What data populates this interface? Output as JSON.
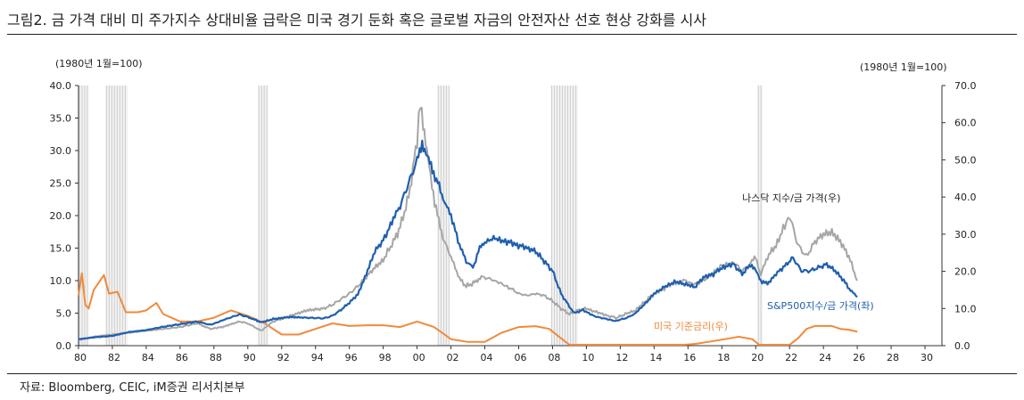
{
  "title": "그림2.  금 가격 대비 미 주가지수 상대비율 급락은 미국 경기 둔화 혹은 글로벌 자금의 안전자산 선호 현상 강화를 시사",
  "source": "자료: Bloomberg, CEIC, iM증권 리서치본부",
  "chart_data": {
    "type": "line",
    "left_axis_unit": "(1980년 1월=100)",
    "right_axis_unit": "(1980년 1월=100)",
    "ylim_left": [
      0,
      40
    ],
    "ylim_right": [
      0,
      70
    ],
    "xlim": [
      1980,
      2031
    ],
    "y_ticks_left": [
      "0.0",
      "5.0",
      "10.0",
      "15.0",
      "20.0",
      "25.0",
      "30.0",
      "35.0",
      "40.0"
    ],
    "y_ticks_right": [
      "0.0",
      "10.0",
      "20.0",
      "30.0",
      "40.0",
      "50.0",
      "60.0",
      "70.0"
    ],
    "x_tick_labels": [
      "80",
      "82",
      "84",
      "86",
      "88",
      "90",
      "92",
      "94",
      "96",
      "98",
      "00",
      "02",
      "04",
      "06",
      "08",
      "10",
      "12",
      "14",
      "16",
      "18",
      "20",
      "22",
      "24",
      "26",
      "28",
      "30"
    ],
    "recessions": [
      [
        1980.0,
        1980.6
      ],
      [
        1981.6,
        1982.9
      ],
      [
        1990.6,
        1991.2
      ],
      [
        2001.2,
        2001.9
      ],
      [
        2007.9,
        2009.5
      ],
      [
        2020.1,
        2020.4
      ]
    ],
    "series": [
      {
        "name": "S&P500지수/금 가격(좌)",
        "axis": "left",
        "color": "#1f5fae",
        "points": [
          [
            1980.0,
            1.0
          ],
          [
            1981.0,
            1.3
          ],
          [
            1982.0,
            1.5
          ],
          [
            1983.0,
            2.1
          ],
          [
            1984.0,
            2.4
          ],
          [
            1985.0,
            2.9
          ],
          [
            1986.0,
            3.3
          ],
          [
            1987.0,
            3.7
          ],
          [
            1987.8,
            3.2
          ],
          [
            1988.5,
            3.9
          ],
          [
            1989.5,
            4.8
          ],
          [
            1990.0,
            4.4
          ],
          [
            1990.8,
            3.6
          ],
          [
            1991.5,
            4.1
          ],
          [
            1992.5,
            4.4
          ],
          [
            1993.5,
            4.3
          ],
          [
            1994.5,
            4.2
          ],
          [
            1995.0,
            4.6
          ],
          [
            1995.5,
            5.5
          ],
          [
            1996.0,
            6.6
          ],
          [
            1996.5,
            7.9
          ],
          [
            1997.0,
            11.0
          ],
          [
            1997.5,
            14.5
          ],
          [
            1998.0,
            16.2
          ],
          [
            1998.6,
            19.5
          ],
          [
            1999.0,
            21.5
          ],
          [
            1999.5,
            25.0
          ],
          [
            2000.0,
            28.5
          ],
          [
            2000.3,
            31.3
          ],
          [
            2000.6,
            29.0
          ],
          [
            2000.9,
            27.0
          ],
          [
            2001.3,
            24.5
          ],
          [
            2001.7,
            21.5
          ],
          [
            2002.0,
            20.0
          ],
          [
            2002.5,
            15.5
          ],
          [
            2002.9,
            13.0
          ],
          [
            2003.3,
            12.0
          ],
          [
            2003.7,
            15.0
          ],
          [
            2004.0,
            16.0
          ],
          [
            2004.6,
            16.5
          ],
          [
            2005.3,
            16.0
          ],
          [
            2005.9,
            15.5
          ],
          [
            2006.5,
            15.0
          ],
          [
            2007.0,
            14.5
          ],
          [
            2007.5,
            13.0
          ],
          [
            2008.0,
            11.5
          ],
          [
            2008.5,
            8.0
          ],
          [
            2009.0,
            6.0
          ],
          [
            2009.3,
            5.0
          ],
          [
            2009.8,
            5.5
          ],
          [
            2010.5,
            4.5
          ],
          [
            2011.0,
            4.2
          ],
          [
            2011.7,
            3.8
          ],
          [
            2012.3,
            4.2
          ],
          [
            2012.8,
            4.8
          ],
          [
            2013.5,
            6.5
          ],
          [
            2014.0,
            8.0
          ],
          [
            2014.6,
            9.0
          ],
          [
            2015.2,
            9.8
          ],
          [
            2015.8,
            9.5
          ],
          [
            2016.4,
            9.0
          ],
          [
            2016.9,
            10.5
          ],
          [
            2017.5,
            11.0
          ],
          [
            2018.0,
            12.0
          ],
          [
            2018.7,
            12.5
          ],
          [
            2019.2,
            11.0
          ],
          [
            2019.7,
            12.5
          ],
          [
            2020.0,
            11.5
          ],
          [
            2020.3,
            10.0
          ],
          [
            2020.7,
            9.5
          ],
          [
            2021.2,
            11.0
          ],
          [
            2021.8,
            12.5
          ],
          [
            2022.2,
            13.5
          ],
          [
            2022.7,
            11.5
          ],
          [
            2023.2,
            11.5
          ],
          [
            2023.7,
            12.0
          ],
          [
            2024.2,
            12.5
          ],
          [
            2024.7,
            11.5
          ],
          [
            2025.2,
            10.0
          ],
          [
            2025.6,
            8.5
          ],
          [
            2026.0,
            7.5
          ]
        ]
      },
      {
        "name": "나스닥 지수/금 가격(우)",
        "axis": "right",
        "color": "#a6a6a6",
        "points": [
          [
            1980.0,
            1.5
          ],
          [
            1981.0,
            2.5
          ],
          [
            1982.0,
            3.0
          ],
          [
            1983.0,
            3.5
          ],
          [
            1984.0,
            4.0
          ],
          [
            1985.0,
            4.5
          ],
          [
            1986.0,
            5.0
          ],
          [
            1987.0,
            6.0
          ],
          [
            1987.8,
            4.5
          ],
          [
            1988.5,
            5.0
          ],
          [
            1989.5,
            6.5
          ],
          [
            1990.0,
            6.0
          ],
          [
            1990.8,
            4.0
          ],
          [
            1991.5,
            6.5
          ],
          [
            1992.5,
            8.0
          ],
          [
            1993.5,
            9.5
          ],
          [
            1994.5,
            10.0
          ],
          [
            1995.0,
            11.0
          ],
          [
            1995.5,
            12.5
          ],
          [
            1996.0,
            14.0
          ],
          [
            1996.5,
            16.0
          ],
          [
            1997.0,
            18.5
          ],
          [
            1997.5,
            21.0
          ],
          [
            1998.0,
            23.0
          ],
          [
            1998.6,
            28.0
          ],
          [
            1999.0,
            32.0
          ],
          [
            1999.5,
            40.0
          ],
          [
            2000.0,
            55.0
          ],
          [
            2000.2,
            66.0
          ],
          [
            2000.5,
            55.0
          ],
          [
            2000.8,
            45.0
          ],
          [
            2001.2,
            35.0
          ],
          [
            2001.6,
            28.0
          ],
          [
            2002.0,
            24.0
          ],
          [
            2002.5,
            18.0
          ],
          [
            2002.9,
            16.0
          ],
          [
            2003.4,
            17.0
          ],
          [
            2003.8,
            18.5
          ],
          [
            2004.3,
            18.0
          ],
          [
            2004.8,
            17.0
          ],
          [
            2005.5,
            15.5
          ],
          [
            2006.0,
            14.0
          ],
          [
            2006.5,
            13.5
          ],
          [
            2007.0,
            14.0
          ],
          [
            2007.5,
            13.5
          ],
          [
            2008.0,
            12.0
          ],
          [
            2008.5,
            10.0
          ],
          [
            2009.0,
            8.5
          ],
          [
            2009.5,
            9.5
          ],
          [
            2010.0,
            10.0
          ],
          [
            2010.6,
            9.0
          ],
          [
            2011.3,
            8.0
          ],
          [
            2011.8,
            7.5
          ],
          [
            2012.3,
            8.5
          ],
          [
            2012.9,
            9.5
          ],
          [
            2013.5,
            12.0
          ],
          [
            2014.0,
            14.0
          ],
          [
            2014.6,
            15.5
          ],
          [
            2015.2,
            17.0
          ],
          [
            2015.8,
            17.5
          ],
          [
            2016.4,
            16.5
          ],
          [
            2016.9,
            17.5
          ],
          [
            2017.5,
            19.5
          ],
          [
            2018.0,
            21.5
          ],
          [
            2018.7,
            22.5
          ],
          [
            2019.2,
            20.0
          ],
          [
            2019.7,
            22.0
          ],
          [
            2020.0,
            24.0
          ],
          [
            2020.3,
            19.0
          ],
          [
            2020.7,
            24.0
          ],
          [
            2021.2,
            27.0
          ],
          [
            2021.8,
            33.0
          ],
          [
            2022.0,
            35.0
          ],
          [
            2022.5,
            27.0
          ],
          [
            2023.0,
            24.0
          ],
          [
            2023.5,
            28.0
          ],
          [
            2024.0,
            30.0
          ],
          [
            2024.5,
            30.5
          ],
          [
            2025.0,
            28.0
          ],
          [
            2025.5,
            24.0
          ],
          [
            2026.0,
            17.5
          ]
        ]
      },
      {
        "name": "미국 기준금리(우)",
        "axis": "right",
        "color": "#f08a3b",
        "points": [
          [
            1980.0,
            13.5
          ],
          [
            1980.2,
            19.5
          ],
          [
            1980.4,
            11.0
          ],
          [
            1980.6,
            10.0
          ],
          [
            1980.9,
            15.0
          ],
          [
            1981.2,
            17.0
          ],
          [
            1981.5,
            19.0
          ],
          [
            1981.8,
            14.0
          ],
          [
            1982.3,
            14.5
          ],
          [
            1982.8,
            9.0
          ],
          [
            1983.5,
            9.0
          ],
          [
            1984.0,
            9.5
          ],
          [
            1984.6,
            11.5
          ],
          [
            1985.0,
            8.5
          ],
          [
            1986.0,
            6.5
          ],
          [
            1987.0,
            6.5
          ],
          [
            1988.0,
            7.5
          ],
          [
            1989.0,
            9.5
          ],
          [
            1990.0,
            8.0
          ],
          [
            1991.0,
            6.0
          ],
          [
            1992.0,
            3.0
          ],
          [
            1993.0,
            3.0
          ],
          [
            1994.0,
            4.5
          ],
          [
            1995.0,
            6.0
          ],
          [
            1996.0,
            5.3
          ],
          [
            1997.0,
            5.5
          ],
          [
            1998.0,
            5.5
          ],
          [
            1999.0,
            5.0
          ],
          [
            2000.0,
            6.5
          ],
          [
            2001.0,
            5.0
          ],
          [
            2002.0,
            1.75
          ],
          [
            2003.0,
            1.0
          ],
          [
            2004.0,
            1.0
          ],
          [
            2005.0,
            3.5
          ],
          [
            2006.0,
            5.0
          ],
          [
            2007.0,
            5.25
          ],
          [
            2007.8,
            4.5
          ],
          [
            2008.5,
            2.0
          ],
          [
            2009.0,
            0.25
          ],
          [
            2015.8,
            0.25
          ],
          [
            2016.5,
            0.5
          ],
          [
            2017.5,
            1.25
          ],
          [
            2018.5,
            2.0
          ],
          [
            2019.0,
            2.4
          ],
          [
            2019.8,
            1.75
          ],
          [
            2020.2,
            0.25
          ],
          [
            2022.0,
            0.25
          ],
          [
            2022.5,
            2.0
          ],
          [
            2023.0,
            4.5
          ],
          [
            2023.5,
            5.3
          ],
          [
            2024.5,
            5.3
          ],
          [
            2025.0,
            4.5
          ],
          [
            2025.5,
            4.3
          ],
          [
            2026.0,
            3.75
          ]
        ]
      }
    ],
    "annotations": [
      {
        "text": "나스닥 지수/금 가격(우)",
        "series": 1
      },
      {
        "text": "S&P500지수/금 가격(좌)",
        "series": 0
      },
      {
        "text": "미국 기준금리(우)",
        "series": 2
      }
    ]
  }
}
